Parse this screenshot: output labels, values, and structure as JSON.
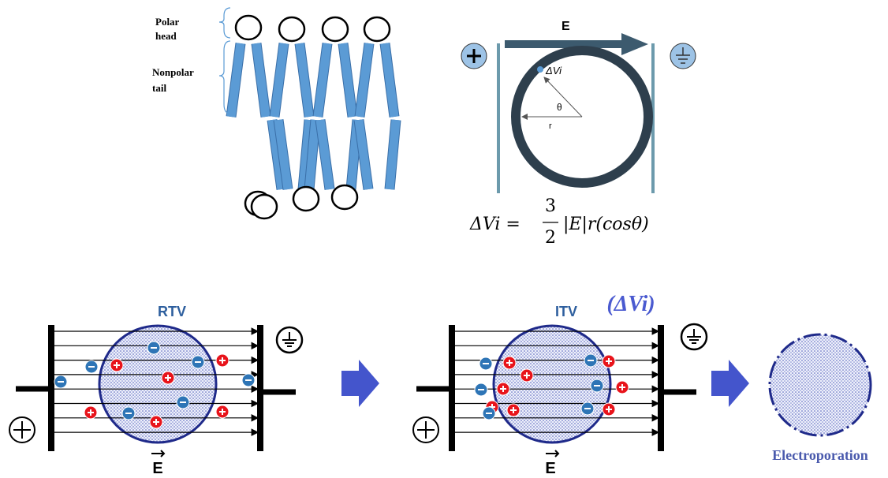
{
  "membrane": {
    "polar_head": [
      "Polar",
      "head"
    ],
    "nonpolar_tail": [
      "Nonpolar",
      "tail"
    ]
  },
  "cell_model": {
    "field": "E",
    "delta_v": "ΔVi",
    "theta": "θ",
    "radius": "r",
    "formula": {
      "lhs": "ΔVi =",
      "numerator": "3",
      "denominator": "2",
      "rhs": "|E|r(cosθ)"
    }
  },
  "panels": [
    {
      "title": "RTV",
      "field": "E"
    },
    {
      "title": "ITV",
      "subtitle": "(ΔVi)",
      "field": "E"
    },
    {
      "label": "Electroporation"
    }
  ]
}
